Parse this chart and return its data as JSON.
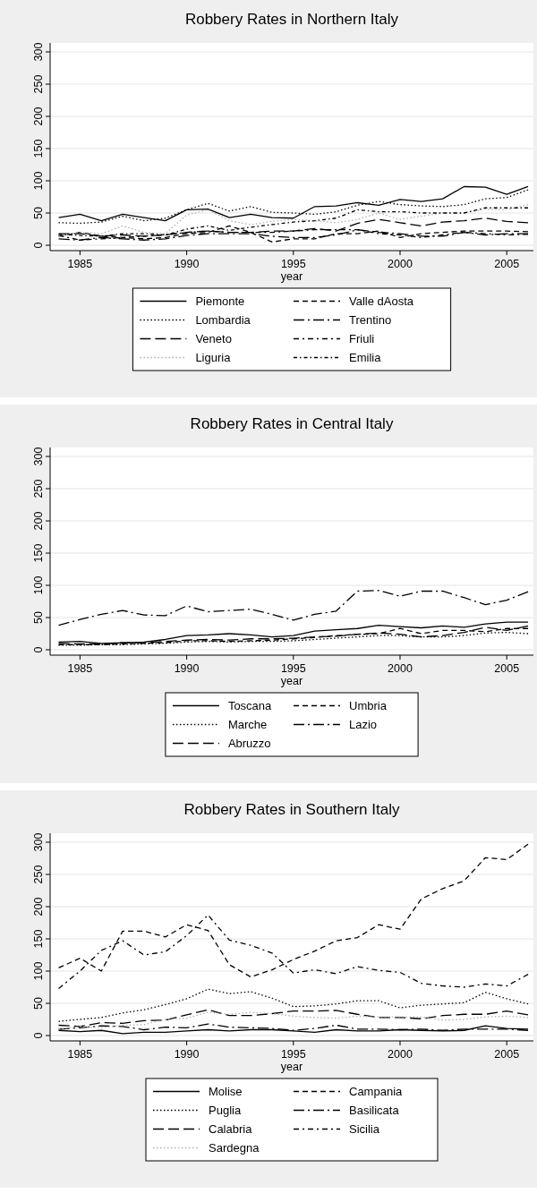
{
  "chart_data": [
    {
      "type": "line",
      "title": "Robbery Rates in Northern Italy",
      "xlabel": "year",
      "x": [
        1984,
        1985,
        1986,
        1987,
        1988,
        1989,
        1990,
        1991,
        1992,
        1993,
        1994,
        1995,
        1996,
        1997,
        1998,
        1999,
        2000,
        2001,
        2002,
        2003,
        2004,
        2005,
        2006
      ],
      "xlim": [
        1983.6,
        2006.25
      ],
      "xticks": [
        1985,
        1990,
        1995,
        2000,
        2005
      ],
      "ylim": [
        0,
        300
      ],
      "yticks": [
        0,
        50,
        100,
        150,
        200,
        250,
        300
      ],
      "grid": "y",
      "legend": "bottom",
      "series": [
        {
          "name": "Piemonte",
          "color": "#000000",
          "line_style": "solid",
          "values": [
            43,
            48,
            38,
            48,
            43,
            38,
            55,
            56,
            43,
            48,
            43,
            42,
            60,
            61,
            66,
            62,
            71,
            68,
            72,
            91,
            90,
            79,
            91
          ]
        },
        {
          "name": "Valle dAosta",
          "color": "#000000",
          "line_style": "dashed",
          "values": [
            14,
            20,
            14,
            12,
            10,
            12,
            18,
            20,
            30,
            20,
            5,
            10,
            10,
            18,
            18,
            22,
            12,
            18,
            20,
            22,
            22,
            22,
            21
          ]
        },
        {
          "name": "Lombardia",
          "color": "#000000",
          "line_style": "dotted",
          "values": [
            35,
            34,
            36,
            45,
            38,
            42,
            55,
            65,
            53,
            60,
            51,
            50,
            48,
            52,
            62,
            68,
            63,
            61,
            60,
            63,
            72,
            74,
            86
          ]
        },
        {
          "name": "Trentino",
          "color": "#000000",
          "line_style": "longdashdot",
          "values": [
            10,
            8,
            12,
            10,
            8,
            10,
            15,
            18,
            18,
            18,
            14,
            12,
            12,
            16,
            24,
            20,
            18,
            14,
            14,
            20,
            16,
            18,
            18
          ]
        },
        {
          "name": "Veneto",
          "color": "#000000",
          "line_style": "longdash",
          "values": [
            18,
            18,
            14,
            16,
            14,
            16,
            20,
            22,
            20,
            20,
            22,
            22,
            26,
            22,
            34,
            40,
            35,
            30,
            36,
            38,
            42,
            37,
            35
          ]
        },
        {
          "name": "Friuli",
          "color": "#000000",
          "line_style": "dashdot",
          "values": [
            15,
            8,
            10,
            12,
            14,
            16,
            20,
            22,
            20,
            20,
            20,
            22,
            24,
            24,
            24,
            18,
            16,
            12,
            16,
            20,
            18,
            16,
            17
          ]
        },
        {
          "name": "Liguria",
          "color": "#b0b0b0",
          "line_style": "dotted",
          "values": [
            15,
            20,
            18,
            30,
            20,
            18,
            47,
            55,
            38,
            32,
            37,
            40,
            38,
            35,
            40,
            50,
            40,
            45,
            50,
            50,
            56,
            55,
            63
          ]
        },
        {
          "name": "Emilia",
          "color": "#000000",
          "line_style": "shortdashdot",
          "values": [
            17,
            15,
            14,
            18,
            18,
            16,
            25,
            30,
            23,
            28,
            32,
            36,
            38,
            42,
            55,
            52,
            52,
            50,
            50,
            50,
            58,
            58,
            58
          ]
        }
      ]
    },
    {
      "type": "line",
      "title": "Robbery Rates in Central Italy",
      "xlabel": "year",
      "x": [
        1984,
        1985,
        1986,
        1987,
        1988,
        1989,
        1990,
        1991,
        1992,
        1993,
        1994,
        1995,
        1996,
        1997,
        1998,
        1999,
        2000,
        2001,
        2002,
        2003,
        2004,
        2005,
        2006
      ],
      "xlim": [
        1983.6,
        2006.25
      ],
      "xticks": [
        1985,
        1990,
        1995,
        2000,
        2005
      ],
      "ylim": [
        0,
        300
      ],
      "yticks": [
        0,
        50,
        100,
        150,
        200,
        250,
        300
      ],
      "grid": "y",
      "legend": "bottom",
      "series": [
        {
          "name": "Toscana",
          "color": "#000000",
          "line_style": "solid",
          "values": [
            12,
            13,
            10,
            11,
            12,
            16,
            22,
            23,
            25,
            23,
            20,
            22,
            29,
            31,
            33,
            38,
            36,
            34,
            37,
            35,
            40,
            43,
            43
          ]
        },
        {
          "name": "Umbria",
          "color": "#000000",
          "line_style": "dashed",
          "values": [
            8,
            8,
            8,
            9,
            10,
            11,
            14,
            14,
            13,
            14,
            15,
            17,
            19,
            22,
            24,
            25,
            33,
            25,
            30,
            30,
            28,
            33,
            33
          ]
        },
        {
          "name": "Marche",
          "color": "#000000",
          "line_style": "dotted",
          "values": [
            7,
            7,
            8,
            8,
            9,
            10,
            12,
            13,
            12,
            13,
            13,
            14,
            16,
            18,
            20,
            22,
            22,
            20,
            20,
            22,
            26,
            27,
            25
          ]
        },
        {
          "name": "Lazio",
          "color": "#000000",
          "line_style": "longdashdot",
          "values": [
            38,
            47,
            55,
            61,
            54,
            53,
            68,
            59,
            61,
            63,
            55,
            46,
            55,
            60,
            91,
            92,
            83,
            91,
            91,
            81,
            70,
            77,
            90
          ]
        },
        {
          "name": "Abruzzo",
          "color": "#000000",
          "line_style": "longdash",
          "values": [
            10,
            9,
            9,
            11,
            11,
            13,
            15,
            16,
            15,
            17,
            17,
            18,
            20,
            21,
            24,
            26,
            24,
            20,
            22,
            27,
            35,
            30,
            37
          ]
        }
      ]
    },
    {
      "type": "line",
      "title": "Robbery Rates in Southern Italy",
      "xlabel": "year",
      "x": [
        1984,
        1985,
        1986,
        1987,
        1988,
        1989,
        1990,
        1991,
        1992,
        1993,
        1994,
        1995,
        1996,
        1997,
        1998,
        1999,
        2000,
        2001,
        2002,
        2003,
        2004,
        2005,
        2006
      ],
      "xlim": [
        1983.6,
        2006.25
      ],
      "xticks": [
        1985,
        1990,
        1995,
        2000,
        2005
      ],
      "ylim": [
        0,
        300
      ],
      "yticks": [
        0,
        50,
        100,
        150,
        200,
        250,
        300
      ],
      "grid": "y",
      "legend": "bottom",
      "series": [
        {
          "name": "Molise",
          "color": "#000000",
          "line_style": "solid",
          "values": [
            8,
            6,
            8,
            3,
            5,
            5,
            7,
            9,
            7,
            9,
            9,
            7,
            5,
            9,
            7,
            7,
            9,
            8,
            7,
            8,
            15,
            11,
            10
          ]
        },
        {
          "name": "Campania",
          "color": "#000000",
          "line_style": "dashed",
          "values": [
            105,
            120,
            100,
            162,
            162,
            153,
            172,
            163,
            110,
            91,
            102,
            118,
            131,
            147,
            152,
            172,
            165,
            212,
            228,
            240,
            276,
            273,
            297
          ]
        },
        {
          "name": "Puglia",
          "color": "#000000",
          "line_style": "dotted",
          "values": [
            22,
            25,
            28,
            35,
            40,
            48,
            57,
            72,
            65,
            68,
            58,
            45,
            46,
            49,
            54,
            54,
            43,
            47,
            49,
            51,
            67,
            57,
            49
          ]
        },
        {
          "name": "Basilicata",
          "color": "#000000",
          "line_style": "longdashdot",
          "values": [
            10,
            12,
            15,
            14,
            9,
            13,
            12,
            18,
            13,
            12,
            11,
            8,
            11,
            16,
            10,
            10,
            9,
            10,
            8,
            10,
            10,
            10,
            8
          ]
        },
        {
          "name": "Calabria",
          "color": "#000000",
          "line_style": "longdash",
          "values": [
            16,
            14,
            20,
            19,
            23,
            24,
            32,
            40,
            31,
            31,
            34,
            38,
            38,
            39,
            33,
            28,
            28,
            26,
            31,
            33,
            33,
            38,
            32
          ]
        },
        {
          "name": "Sicilia",
          "color": "#000000",
          "line_style": "dashdot",
          "values": [
            73,
            100,
            132,
            147,
            125,
            130,
            155,
            187,
            148,
            140,
            128,
            97,
            102,
            96,
            107,
            101,
            98,
            81,
            77,
            75,
            80,
            77,
            95
          ]
        },
        {
          "name": "Sardegna",
          "color": "#b0b0b0",
          "line_style": "dotted",
          "values": [
            10,
            14,
            12,
            16,
            17,
            25,
            27,
            36,
            33,
            36,
            34,
            30,
            28,
            27,
            30,
            29,
            29,
            29,
            24,
            25,
            29,
            30,
            28
          ]
        }
      ]
    }
  ]
}
